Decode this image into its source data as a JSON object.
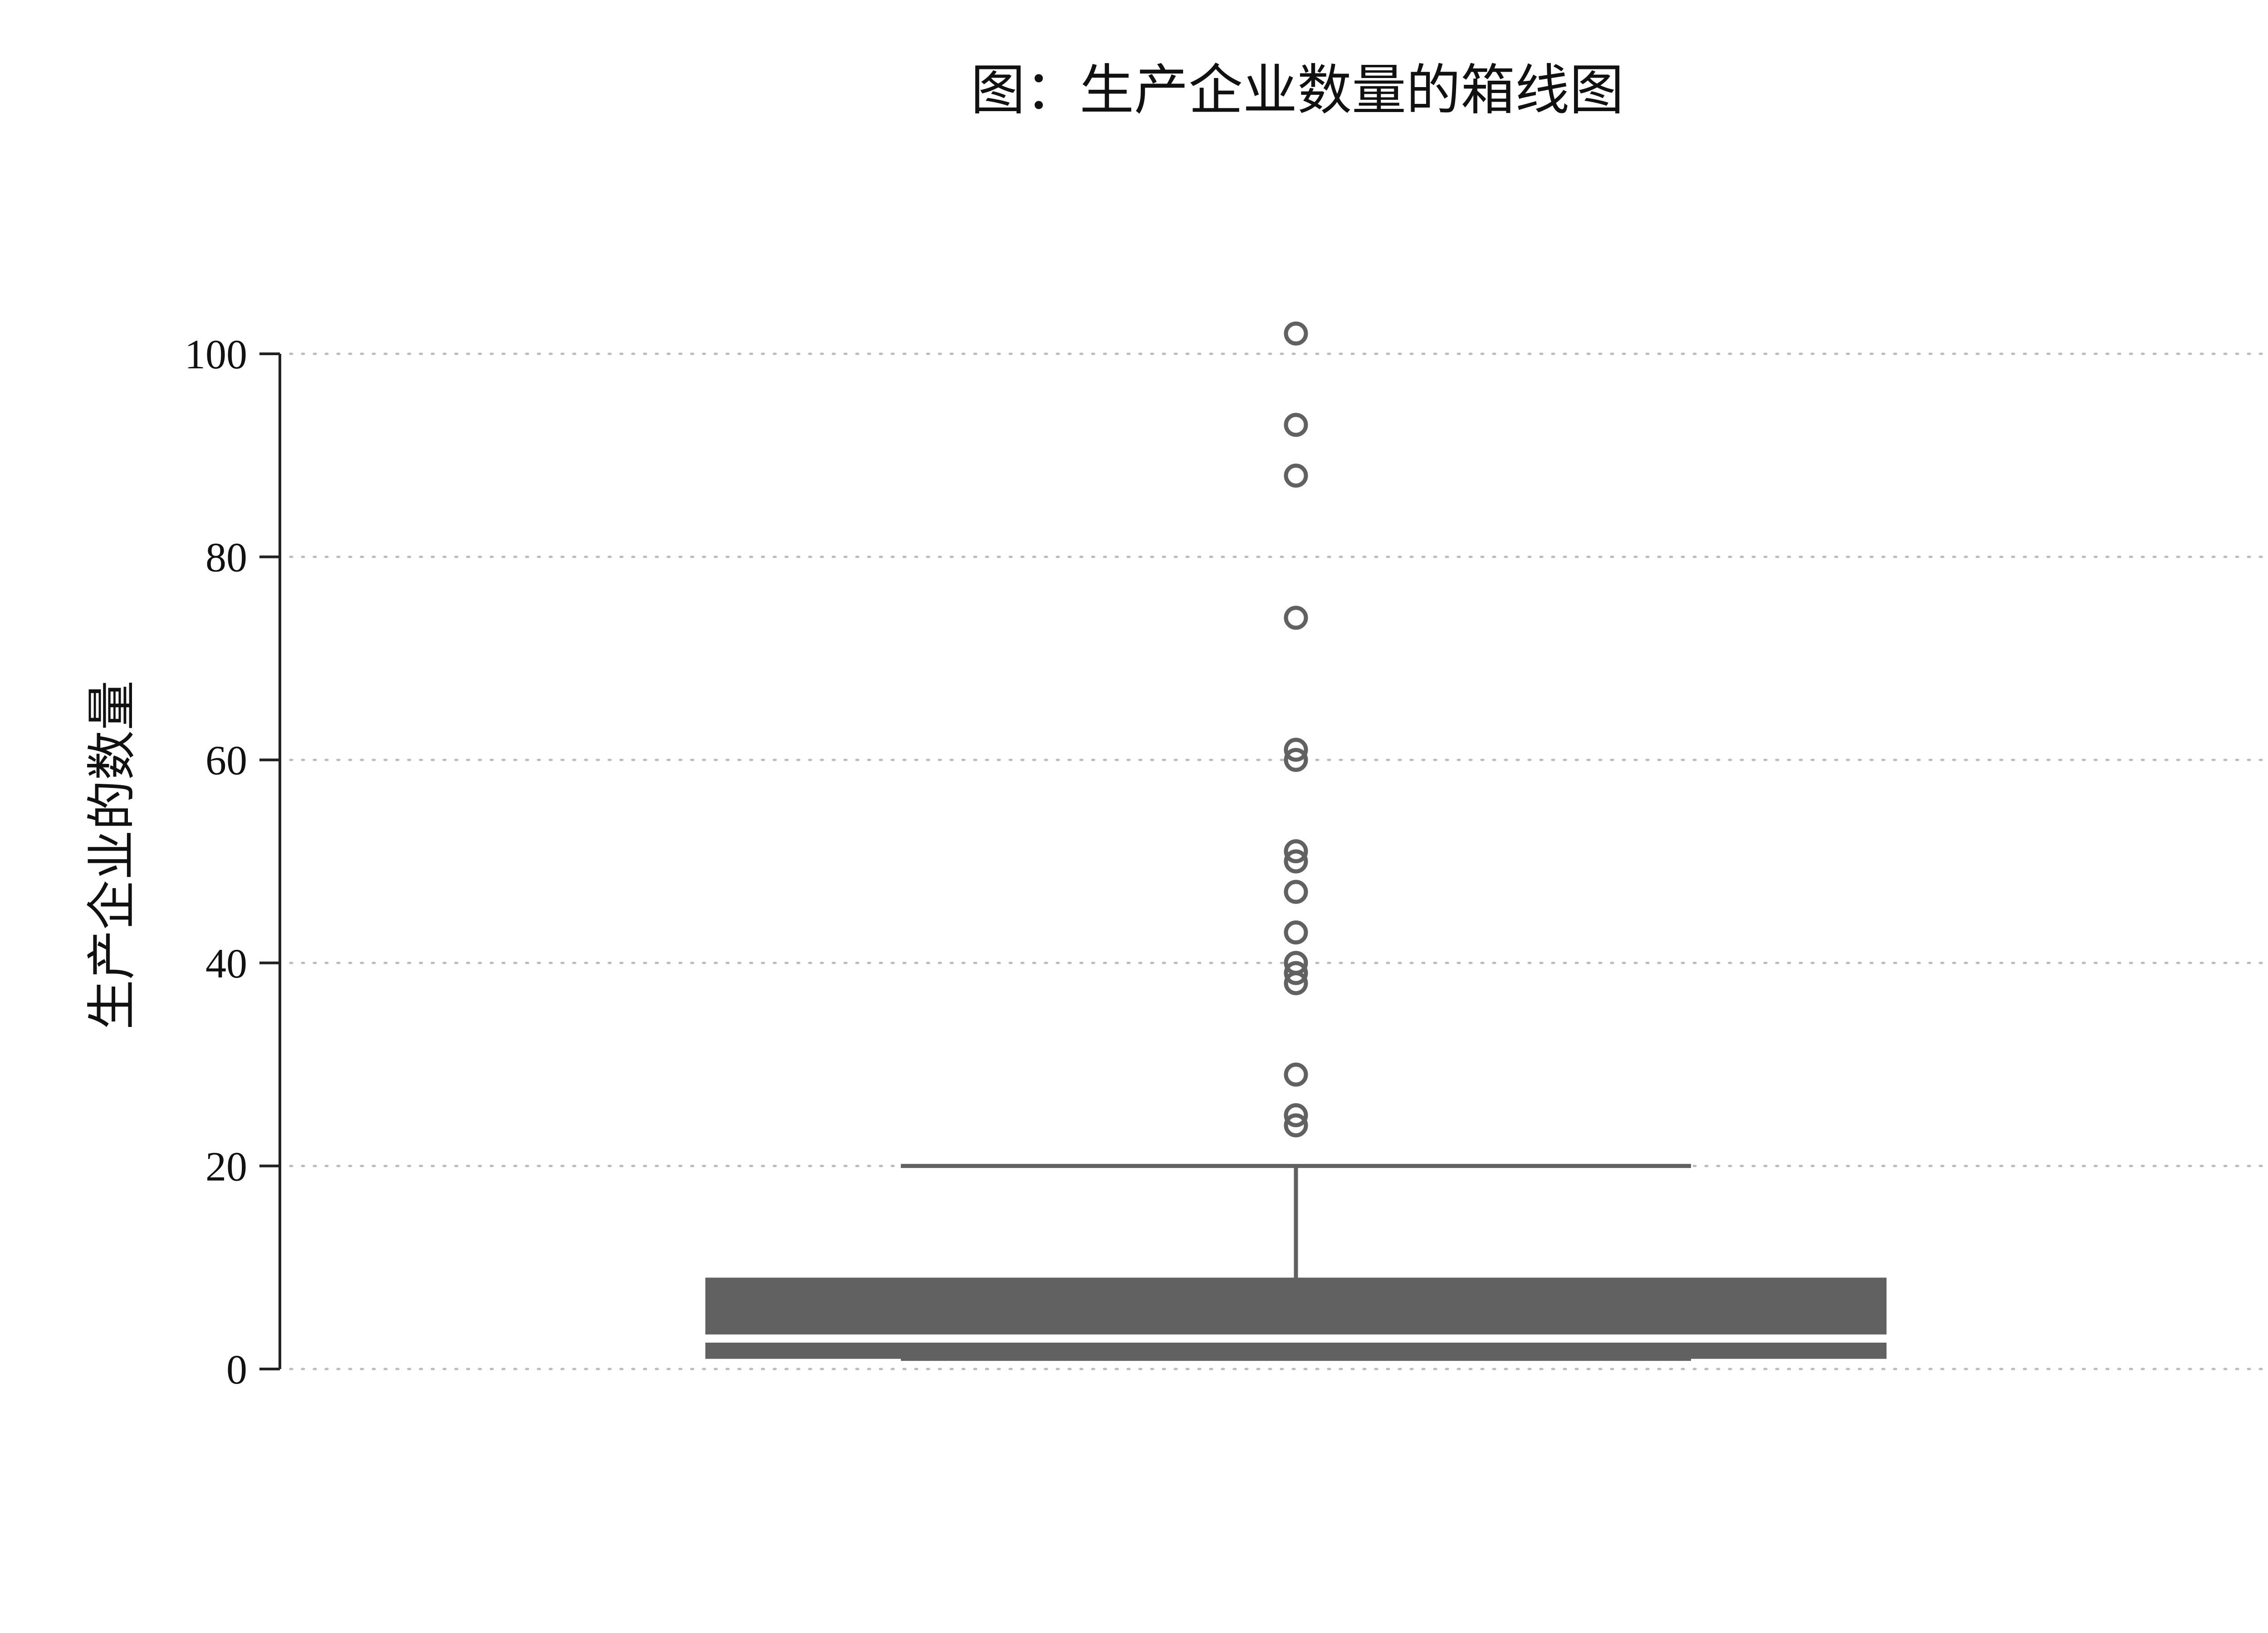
{
  "chart_data": {
    "type": "box",
    "title": "图：生产企业数量的箱线图",
    "xlabel": "",
    "ylabel": "生产企业的数量",
    "ylim": [
      0,
      100
    ],
    "y_ticks": [
      0,
      20,
      40,
      60,
      80,
      100
    ],
    "grid": true,
    "series": [
      {
        "box": {
          "whisker_low": 1,
          "q1": 1,
          "median": 3,
          "q3": 9,
          "whisker_high": 20
        },
        "outliers": [
          24,
          25,
          29,
          38,
          39,
          40,
          43,
          47,
          50,
          51,
          60,
          61,
          74,
          88,
          93,
          102
        ]
      }
    ],
    "colors": {
      "box": "#616161",
      "axis": "#222222",
      "grid": "#bbbbbb"
    }
  }
}
